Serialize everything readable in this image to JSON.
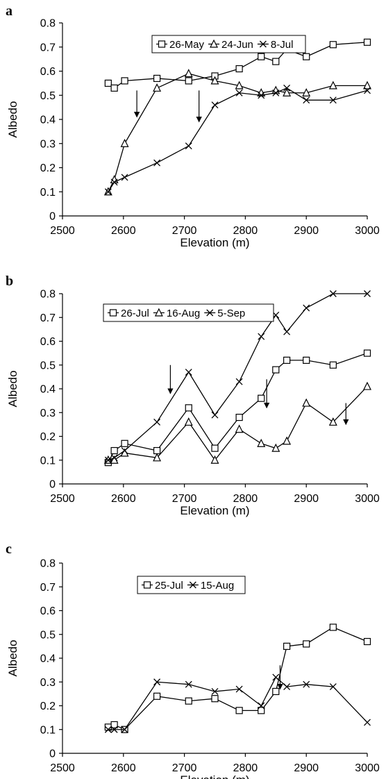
{
  "chart_data": [
    {
      "panel_label": "a",
      "type": "line",
      "xlabel": "Elevation (m)",
      "ylabel": "Albedo",
      "xlim": [
        2500,
        3000
      ],
      "ylim": [
        0,
        0.8
      ],
      "xticks": [
        "2500",
        "2600",
        "2700",
        "2800",
        "2900",
        "3000"
      ],
      "yticks": [
        "0",
        "0.1",
        "0.2",
        "0.3",
        "0.4",
        "0.5",
        "0.6",
        "0.7",
        "0.8"
      ],
      "grid": false,
      "legend": "top",
      "series": [
        {
          "name": "26-May",
          "marker": "square",
          "x": [
            2575,
            2585,
            2602,
            2655,
            2707,
            2750,
            2790,
            2826,
            2850,
            2868,
            2900,
            2944,
            3000
          ],
          "y": [
            0.55,
            0.53,
            0.56,
            0.57,
            0.56,
            0.58,
            0.61,
            0.66,
            0.64,
            0.69,
            0.66,
            0.71,
            0.72
          ]
        },
        {
          "name": "24-Jun",
          "marker": "triangle",
          "x": [
            2575,
            2585,
            2602,
            2655,
            2707,
            2750,
            2790,
            2826,
            2850,
            2868,
            2900,
            2944,
            3000
          ],
          "y": [
            0.1,
            0.15,
            0.3,
            0.53,
            0.59,
            0.56,
            0.54,
            0.51,
            0.52,
            0.51,
            0.51,
            0.54,
            0.54
          ]
        },
        {
          "name": "8-Jul",
          "marker": "x",
          "x": [
            2575,
            2585,
            2602,
            2655,
            2707,
            2750,
            2790,
            2826,
            2850,
            2868,
            2900,
            2944,
            3000
          ],
          "y": [
            0.1,
            0.14,
            0.16,
            0.22,
            0.29,
            0.46,
            0.51,
            0.5,
            0.51,
            0.53,
            0.48,
            0.48,
            0.52
          ]
        }
      ],
      "annotations": [
        {
          "type": "arrow",
          "x": 2622,
          "y_from": 0.52,
          "y_to": 0.41
        },
        {
          "type": "arrow",
          "x": 2724,
          "y_from": 0.52,
          "y_to": 0.39
        }
      ]
    },
    {
      "panel_label": "b",
      "type": "line",
      "xlabel": "Elevation (m)",
      "ylabel": "Albedo",
      "xlim": [
        2500,
        3000
      ],
      "ylim": [
        0,
        0.8
      ],
      "xticks": [
        "2500",
        "2600",
        "2700",
        "2800",
        "2900",
        "3000"
      ],
      "yticks": [
        "0",
        "0.1",
        "0.2",
        "0.3",
        "0.4",
        "0.5",
        "0.6",
        "0.7",
        "0.8"
      ],
      "grid": false,
      "legend": "top",
      "series": [
        {
          "name": "26-Jul",
          "marker": "square",
          "x": [
            2575,
            2585,
            2602,
            2655,
            2707,
            2750,
            2790,
            2826,
            2850,
            2868,
            2900,
            2944,
            3000
          ],
          "y": [
            0.09,
            0.14,
            0.17,
            0.14,
            0.32,
            0.15,
            0.28,
            0.36,
            0.48,
            0.52,
            0.52,
            0.5,
            0.55
          ]
        },
        {
          "name": "16-Aug",
          "marker": "triangle",
          "x": [
            2575,
            2585,
            2602,
            2655,
            2707,
            2750,
            2790,
            2826,
            2850,
            2868,
            2900,
            2944,
            3000
          ],
          "y": [
            0.1,
            0.1,
            0.13,
            0.11,
            0.26,
            0.1,
            0.23,
            0.17,
            0.15,
            0.18,
            0.34,
            0.26,
            0.41
          ]
        },
        {
          "name": "5-Sep",
          "marker": "x",
          "x": [
            2575,
            2585,
            2602,
            2655,
            2707,
            2750,
            2790,
            2826,
            2850,
            2868,
            2900,
            2944,
            3000
          ],
          "y": [
            0.1,
            0.11,
            0.14,
            0.26,
            0.47,
            0.29,
            0.43,
            0.62,
            0.71,
            0.64,
            0.74,
            0.8,
            0.8
          ]
        }
      ],
      "annotations": [
        {
          "type": "arrow",
          "x": 2677,
          "y_from": 0.5,
          "y_to": 0.38
        },
        {
          "type": "arrow",
          "x": 2835,
          "y_from": 0.44,
          "y_to": 0.32
        },
        {
          "type": "arrow",
          "x": 2965,
          "y_from": 0.34,
          "y_to": 0.25
        }
      ]
    },
    {
      "panel_label": "c",
      "type": "line",
      "xlabel": "Elevation (m)",
      "ylabel": "Albedo",
      "xlim": [
        2500,
        3000
      ],
      "ylim": [
        0,
        0.8
      ],
      "xticks": [
        "2500",
        "2600",
        "2700",
        "2800",
        "2900",
        "3000"
      ],
      "yticks": [
        "0",
        "0.1",
        "0.2",
        "0.3",
        "0.4",
        "0.5",
        "0.6",
        "0.7",
        "0.8"
      ],
      "grid": false,
      "legend": "top",
      "series": [
        {
          "name": "25-Jul",
          "marker": "square",
          "x": [
            2575,
            2585,
            2602,
            2655,
            2707,
            2750,
            2790,
            2826,
            2850,
            2868,
            2900,
            2944,
            3000
          ],
          "y": [
            0.11,
            0.12,
            0.1,
            0.24,
            0.22,
            0.23,
            0.18,
            0.18,
            0.26,
            0.45,
            0.46,
            0.53,
            0.47
          ]
        },
        {
          "name": "15-Aug",
          "marker": "x",
          "x": [
            2575,
            2585,
            2602,
            2655,
            2707,
            2750,
            2790,
            2826,
            2850,
            2868,
            2900,
            2944,
            3000
          ],
          "y": [
            0.1,
            0.1,
            0.1,
            0.3,
            0.29,
            0.26,
            0.27,
            0.2,
            0.32,
            0.28,
            0.29,
            0.28,
            0.13
          ]
        }
      ],
      "annotations": [
        {
          "type": "arrow",
          "x": 2857,
          "y_from": 0.37,
          "y_to": 0.27
        }
      ]
    }
  ]
}
